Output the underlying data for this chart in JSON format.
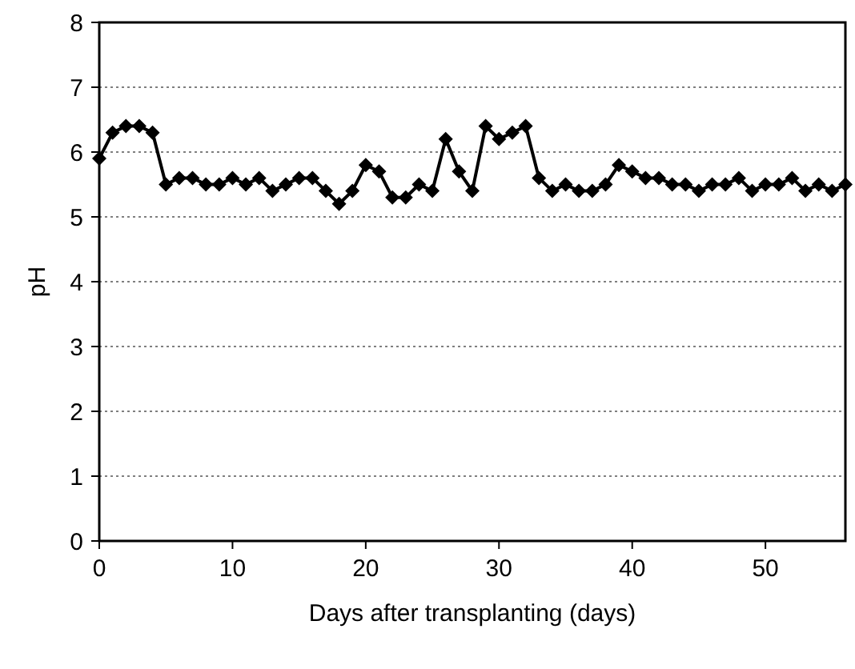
{
  "chart_data": {
    "type": "line",
    "xlabel": "Days after transplanting (days)",
    "ylabel": "pH",
    "x": [
      0,
      1,
      2,
      3,
      4,
      5,
      6,
      7,
      8,
      9,
      10,
      11,
      12,
      13,
      14,
      15,
      16,
      17,
      18,
      19,
      20,
      21,
      22,
      23,
      24,
      25,
      26,
      27,
      28,
      29,
      30,
      31,
      32,
      33,
      34,
      35,
      36,
      37,
      38,
      39,
      40,
      41,
      42,
      43,
      44,
      45,
      46,
      47,
      48,
      49,
      50,
      51,
      52,
      53,
      54,
      55,
      56
    ],
    "series": [
      {
        "color": "#000000",
        "values": [
          5.9,
          6.3,
          6.4,
          6.4,
          6.3,
          5.5,
          5.6,
          5.6,
          5.5,
          5.5,
          5.6,
          5.5,
          5.6,
          5.4,
          5.5,
          5.6,
          5.6,
          5.4,
          5.2,
          5.4,
          5.8,
          5.7,
          5.3,
          5.3,
          5.5,
          5.4,
          6.2,
          5.7,
          5.4,
          6.4,
          6.2,
          6.3,
          6.4,
          5.6,
          5.4,
          5.5,
          5.4,
          5.4,
          5.5,
          5.8,
          5.7,
          5.6,
          5.6,
          5.5,
          5.5,
          5.4,
          5.5,
          5.5,
          5.6,
          5.4,
          5.5,
          5.5,
          5.6,
          5.4,
          5.5,
          5.4,
          5.5
        ]
      }
    ],
    "xlim": [
      0,
      56
    ],
    "xticks": [
      0,
      10,
      20,
      30,
      40,
      50
    ],
    "ylim": [
      0,
      8
    ],
    "yticks": [
      0,
      1,
      2,
      3,
      4,
      5,
      6,
      7,
      8
    ],
    "grid": "y",
    "marker": "diamond",
    "line_style": "solid"
  }
}
